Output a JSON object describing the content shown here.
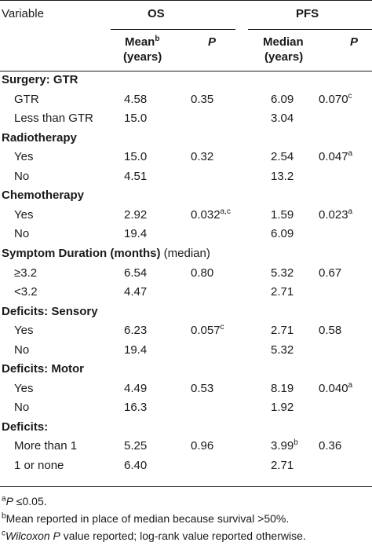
{
  "header": {
    "variable": "Variable",
    "os": "OS",
    "pfs": "PFS",
    "mean_line1": "Mean",
    "mean_sup": "b",
    "mean_line2": "(years)",
    "p_os": "P",
    "median_line1": "Median",
    "median_line2": "(years)",
    "p_pfs": "P"
  },
  "groups": [
    {
      "title": "Surgery: GTR",
      "rows": [
        {
          "label": "GTR",
          "os": "4.58",
          "os_sup": "",
          "p_os": "0.35",
          "p_os_sup": "",
          "pfs": "6.09",
          "pfs_sup": "",
          "p_pfs": "0.070",
          "p_pfs_sup": "c"
        },
        {
          "label": "Less than GTR",
          "os": "15.0",
          "os_sup": "",
          "p_os": "",
          "p_os_sup": "",
          "pfs": "3.04",
          "pfs_sup": "",
          "p_pfs": "",
          "p_pfs_sup": ""
        }
      ]
    },
    {
      "title": "Radiotherapy",
      "rows": [
        {
          "label": "Yes",
          "os": "15.0",
          "os_sup": "",
          "p_os": "0.32",
          "p_os_sup": "",
          "pfs": "2.54",
          "pfs_sup": "",
          "p_pfs": "0.047",
          "p_pfs_sup": "a"
        },
        {
          "label": "No",
          "os": "4.51",
          "os_sup": "",
          "p_os": "",
          "p_os_sup": "",
          "pfs": "13.2",
          "pfs_sup": "",
          "p_pfs": "",
          "p_pfs_sup": ""
        }
      ]
    },
    {
      "title": "Chemotherapy",
      "rows": [
        {
          "label": "Yes",
          "os": "2.92",
          "os_sup": "",
          "p_os": "0.032",
          "p_os_sup": "a,c",
          "pfs": "1.59",
          "pfs_sup": "",
          "p_pfs": "0.023",
          "p_pfs_sup": "a"
        },
        {
          "label": "No",
          "os": "19.4",
          "os_sup": "",
          "p_os": "",
          "p_os_sup": "",
          "pfs": "6.09",
          "pfs_sup": "",
          "p_pfs": "",
          "p_pfs_sup": ""
        }
      ]
    },
    {
      "title": "Symptom Duration (months)",
      "title_suffix": " (median)",
      "rows": [
        {
          "label": "≥3.2",
          "os": "6.54",
          "os_sup": "",
          "p_os": "0.80",
          "p_os_sup": "",
          "pfs": "5.32",
          "pfs_sup": "",
          "p_pfs": "0.67",
          "p_pfs_sup": ""
        },
        {
          "label": "<3.2",
          "os": "4.47",
          "os_sup": "",
          "p_os": "",
          "p_os_sup": "",
          "pfs": "2.71",
          "pfs_sup": "",
          "p_pfs": "",
          "p_pfs_sup": ""
        }
      ]
    },
    {
      "title": "Deficits: Sensory",
      "rows": [
        {
          "label": "Yes",
          "os": "6.23",
          "os_sup": "",
          "p_os": "0.057",
          "p_os_sup": "c",
          "pfs": "2.71",
          "pfs_sup": "",
          "p_pfs": "0.58",
          "p_pfs_sup": ""
        },
        {
          "label": "No",
          "os": "19.4",
          "os_sup": "",
          "p_os": "",
          "p_os_sup": "",
          "pfs": "5.32",
          "pfs_sup": "",
          "p_pfs": "",
          "p_pfs_sup": ""
        }
      ]
    },
    {
      "title": "Deficits: Motor",
      "rows": [
        {
          "label": "Yes",
          "os": "4.49",
          "os_sup": "",
          "p_os": "0.53",
          "p_os_sup": "",
          "pfs": "8.19",
          "pfs_sup": "",
          "p_pfs": "0.040",
          "p_pfs_sup": "a"
        },
        {
          "label": "No",
          "os": "16.3",
          "os_sup": "",
          "p_os": "",
          "p_os_sup": "",
          "pfs": "1.92",
          "pfs_sup": "",
          "p_pfs": "",
          "p_pfs_sup": ""
        }
      ]
    },
    {
      "title": "Deficits:",
      "rows": [
        {
          "label": "More than 1",
          "os": "5.25",
          "os_sup": "",
          "p_os": "0.96",
          "p_os_sup": "",
          "pfs": "3.99",
          "pfs_sup": "b",
          "p_pfs": "0.36",
          "p_pfs_sup": ""
        },
        {
          "label": "1 or none",
          "os": "6.40",
          "os_sup": "",
          "p_os": "",
          "p_os_sup": "",
          "pfs": "2.71",
          "pfs_sup": "",
          "p_pfs": "",
          "p_pfs_sup": ""
        }
      ]
    }
  ],
  "footnotes": {
    "a_mark": "a",
    "a_p": "P",
    "a_text": " ≤0.05.",
    "b_mark": "b",
    "b_text": "Mean reported in place of median because survival >50%.",
    "c_mark": "c",
    "c_em": "Wilcoxon P",
    "c_text": " value reported; log-rank value reported otherwise."
  }
}
